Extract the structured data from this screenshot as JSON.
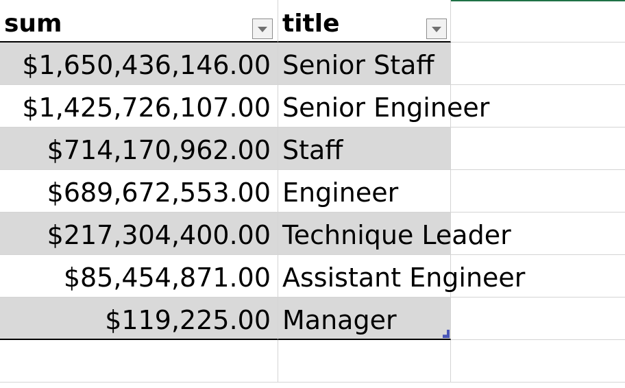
{
  "table": {
    "headers": {
      "sum": "sum",
      "title": "title"
    },
    "rows": [
      {
        "sum": "$1,650,436,146.00",
        "title": "Senior Staff"
      },
      {
        "sum": "$1,425,726,107.00",
        "title": "Senior Engineer"
      },
      {
        "sum": "$714,170,962.00",
        "title": "Staff"
      },
      {
        "sum": "$689,672,553.00",
        "title": "Engineer"
      },
      {
        "sum": "$217,304,400.00",
        "title": "Technique Leader"
      },
      {
        "sum": "$85,454,871.00",
        "title": "Assistant Engineer"
      },
      {
        "sum": "$119,225.00",
        "title": "Manager"
      }
    ]
  },
  "icons": {
    "filter": "dropdown-arrow-icon",
    "resize": "table-resize-handle-icon"
  },
  "colors": {
    "band": "#d9d9d9",
    "gridline": "#d4d4d4",
    "selection": "#1e7145",
    "handle": "#4a56b8"
  }
}
